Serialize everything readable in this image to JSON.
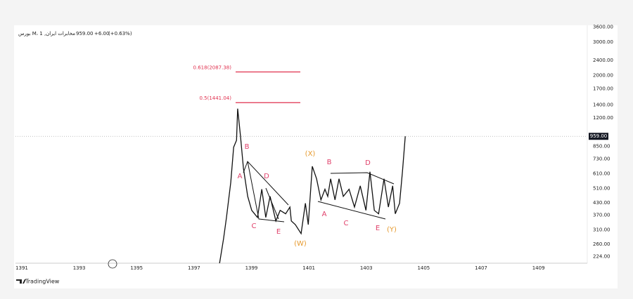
{
  "chart_data": {
    "type": "line",
    "title": "مخابرات ایران, 1 ،M بورس",
    "last_price": {
      "value": 959,
      "label": "959.00"
    },
    "change": {
      "value": 6,
      "label": "+6.00"
    },
    "change_pct": {
      "value": 0.63,
      "label": "(+0.63%)"
    },
    "brand": "TradingView",
    "color": "#111111",
    "log_scale": true,
    "xlim": [
      1390.78,
      1410.7
    ],
    "xticks": [
      1391,
      1393,
      1395,
      1397,
      1399,
      1401,
      1403,
      1405,
      1407,
      1409
    ],
    "ylim": [
      207,
      3670
    ],
    "yticks": [
      {
        "value": 224,
        "label": "224.00"
      },
      {
        "value": 260,
        "label": "260.00"
      },
      {
        "value": 310,
        "label": "310.00"
      },
      {
        "value": 370,
        "label": "370.00"
      },
      {
        "value": 430,
        "label": "430.00"
      },
      {
        "value": 510,
        "label": "510.00"
      },
      {
        "value": 610,
        "label": "610.00"
      },
      {
        "value": 730,
        "label": "730.00"
      },
      {
        "value": 850,
        "label": "850.00"
      },
      {
        "value": 1200,
        "label": "1200.00"
      },
      {
        "value": 1400,
        "label": "1400.00"
      },
      {
        "value": 1700,
        "label": "1700.00"
      },
      {
        "value": 2000,
        "label": "2000.00"
      },
      {
        "value": 2400,
        "label": "2400.00"
      },
      {
        "value": 3000,
        "label": "3000.00"
      },
      {
        "value": 3600,
        "label": "3600.00"
      }
    ],
    "x": [
      1397.89,
      1398.03,
      1398.13,
      1398.28,
      1398.38,
      1398.48,
      1398.52,
      1398.62,
      1398.72,
      1398.87,
      1399.01,
      1399.21,
      1399.36,
      1399.5,
      1399.65,
      1399.85,
      1400.0,
      1400.19,
      1400.34,
      1400.39,
      1400.53,
      1400.73,
      1400.88,
      1400.98,
      1401.12,
      1401.27,
      1401.42,
      1401.56,
      1401.66,
      1401.76,
      1401.91,
      1402.05,
      1402.2,
      1402.4,
      1402.59,
      1402.79,
      1402.99,
      1403.13,
      1403.28,
      1403.43,
      1403.62,
      1403.77,
      1403.92,
      1404.01,
      1404.16,
      1404.26,
      1404.36
    ],
    "values": [
      207,
      279,
      360,
      550,
      841,
      914,
      1340,
      955,
      652,
      464,
      392,
      360,
      506,
      360,
      464,
      345,
      392,
      376,
      408,
      345,
      330,
      296,
      427,
      330,
      668,
      574,
      445,
      506,
      464,
      574,
      445,
      574,
      464,
      506,
      408,
      527,
      392,
      625,
      392,
      376,
      574,
      408,
      527,
      376,
      427,
      625,
      959
    ],
    "levels": [
      {
        "value": 2087.38,
        "label": "0.618(2087.38)"
      },
      {
        "value": 1441.04,
        "label": "0.5(1441.04)"
      }
    ],
    "level_color": "#e0304e",
    "annotations": [
      {
        "text": "A",
        "color": "#e0406a"
      },
      {
        "text": "B",
        "color": "#e0406a"
      },
      {
        "text": "C",
        "color": "#e0406a"
      },
      {
        "text": "D",
        "color": "#e0406a"
      },
      {
        "text": "E",
        "color": "#e0406a"
      },
      {
        "text": "A",
        "color": "#e0406a"
      },
      {
        "text": "B",
        "color": "#e0406a"
      },
      {
        "text": "C",
        "color": "#e0406a"
      },
      {
        "text": "D",
        "color": "#e0406a"
      },
      {
        "text": "E",
        "color": "#e0406a"
      },
      {
        "text": "(X)",
        "color": "#e69a2e"
      },
      {
        "text": "(W)",
        "color": "#e69a2e"
      },
      {
        "text": "(Y)",
        "color": "#e69a2e"
      }
    ]
  }
}
